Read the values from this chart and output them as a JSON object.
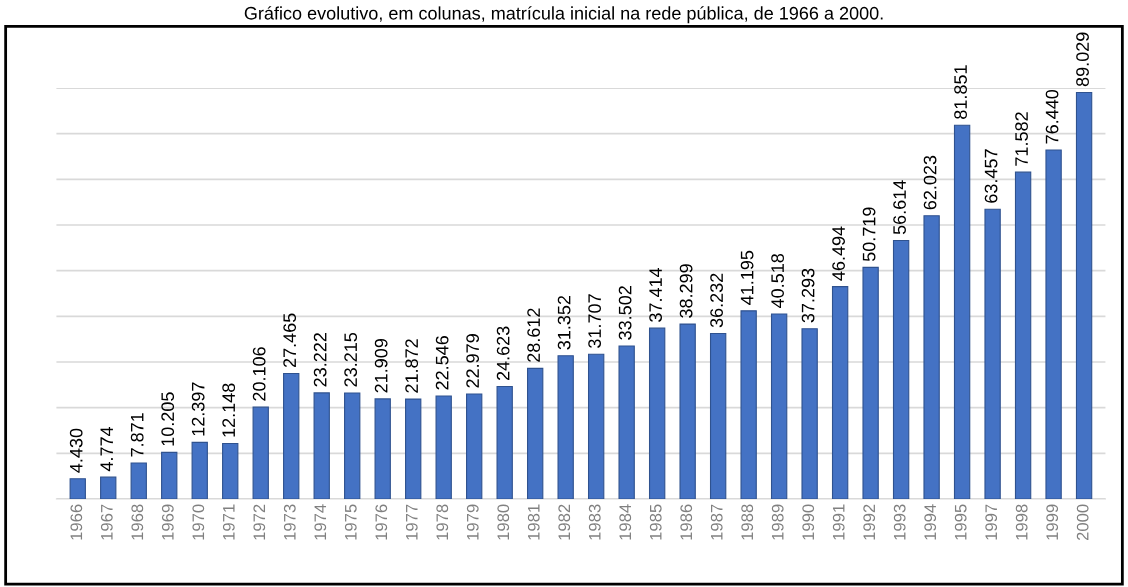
{
  "chart_data": {
    "type": "bar",
    "title": "Gráfico evolutivo, em colunas, matrícula inicial na rede pública, de 1966 a 2000.",
    "categories": [
      "1966",
      "1967",
      "1968",
      "1969",
      "1970",
      "1971",
      "1972",
      "1973",
      "1974",
      "1975",
      "1976",
      "1977",
      "1978",
      "1979",
      "1980",
      "1981",
      "1982",
      "1983",
      "1984",
      "1985",
      "1986",
      "1987",
      "1988",
      "1989",
      "1990",
      "1991",
      "1992",
      "1993",
      "1994",
      "1995",
      "1997",
      "1998",
      "1999",
      "2000"
    ],
    "values": [
      4430,
      4774,
      7871,
      10205,
      12397,
      12148,
      20106,
      27465,
      23222,
      23215,
      21909,
      21872,
      22546,
      22979,
      24623,
      28612,
      31352,
      31707,
      33502,
      37414,
      38299,
      36232,
      41195,
      40518,
      37293,
      46494,
      50719,
      56614,
      62023,
      81851,
      63457,
      71582,
      76440,
      89029
    ],
    "value_labels": [
      "4.430",
      "4.774",
      "7.871",
      "10.205",
      "12.397",
      "12.148",
      "20.106",
      "27.465",
      "23.222",
      "23.215",
      "21.909",
      "21.872",
      "22.546",
      "22.979",
      "24.623",
      "28.612",
      "31.352",
      "31.707",
      "33.502",
      "37.414",
      "38.299",
      "36.232",
      "41.195",
      "40.518",
      "37.293",
      "46.494",
      "50.719",
      "56.614",
      "62.023",
      "81.851",
      "63.457",
      "71.582",
      "76.440",
      "89.029"
    ],
    "color": "#4472c4",
    "ylim": [
      0,
      90000
    ],
    "yticks": [
      {
        "value": 0,
        "label": null
      },
      {
        "value": 10000,
        "label": null
      },
      {
        "value": 20000,
        "label": null
      },
      {
        "value": 30000,
        "label": null
      },
      {
        "value": 40000,
        "label": null
      },
      {
        "value": 50000,
        "label": null
      },
      {
        "value": 60000,
        "label": null
      },
      {
        "value": 70000,
        "label": null
      },
      {
        "value": 80000,
        "label": null
      },
      {
        "value": 90000,
        "label": null
      }
    ],
    "grid": "y",
    "tick_labels": "x"
  }
}
